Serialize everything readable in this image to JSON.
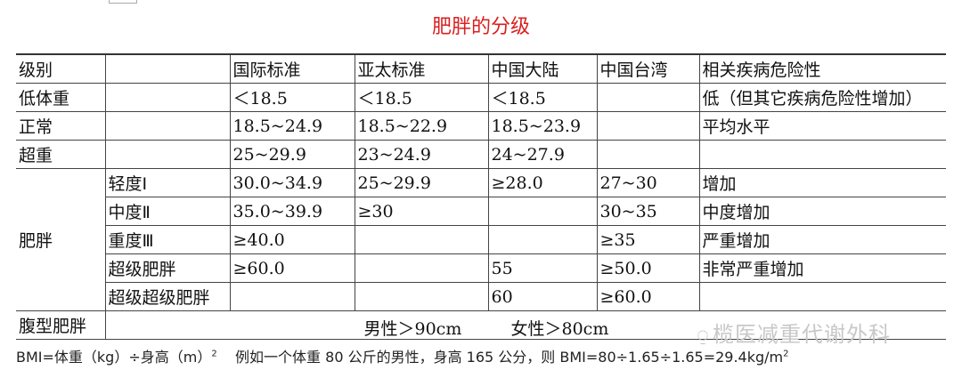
{
  "title": "肥胖的分级",
  "headers": [
    "级别",
    "",
    "国际标准",
    "亚太标准",
    "中国大陆",
    "中国台湾",
    "相关疾病危险性"
  ],
  "rows": [
    [
      "低体重",
      "",
      "＜18.5",
      "＜18.5",
      "＜18.5",
      "",
      "低（但其它疾病危险性增加）"
    ],
    [
      "正常",
      "",
      "18.5~24.9",
      "18.5~22.9",
      "18.5~23.9",
      "",
      "平均水平"
    ],
    [
      "超重",
      "",
      "25~29.9",
      "23~24.9",
      "24~27.9",
      "",
      ""
    ],
    [
      "肥胖",
      "轻度Ⅰ",
      "30.0~34.9",
      "25~29.9",
      "≥28.0",
      "27~30",
      "增加"
    ],
    [
      "",
      "中度Ⅱ",
      "35.0~39.9",
      "≥30",
      "",
      "30~35",
      "中度增加"
    ],
    [
      "",
      "重度Ⅲ",
      "≥40.0",
      "",
      "",
      "≥35",
      "严重增加"
    ],
    [
      "",
      "超级肥胖",
      "≥60.0",
      "",
      "55",
      "≥50.0",
      "非常严重增加"
    ],
    [
      "",
      "超级超级肥胖",
      "",
      "",
      "60",
      "≥60.0",
      ""
    ]
  ],
  "abdominal": {
    "label": "腹型肥胖",
    "male": "男性＞90cm",
    "female": "女性＞80cm"
  },
  "watermark": {
    "icon": "wechat-icon",
    "text": "榄医减重代谢外科"
  },
  "footer": {
    "formula": "BMI=体重（kg）÷身高（m）",
    "exponent": "2",
    "example": "例如一个体重 80 公斤的男性，身高 165 公分，则 BMI=80÷1.65÷1.65=29.4kg/m",
    "example_exponent": "2"
  },
  "colors": {
    "title": "#d9201f"
  }
}
